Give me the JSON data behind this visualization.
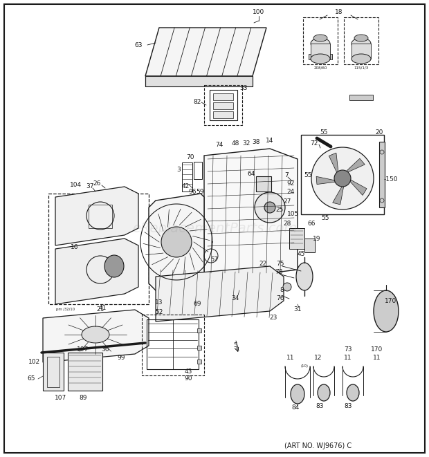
{
  "background_color": "#ffffff",
  "fig_width": 6.2,
  "fig_height": 6.61,
  "dpi": 100,
  "art_no_text": "(ART NO. WJ9676) C",
  "watermark_text": "eReplacementParts.com",
  "border_lw": 1.5,
  "line_color": "#1a1a1a",
  "label_fontsize": 6.5,
  "small_fontsize": 4.5
}
